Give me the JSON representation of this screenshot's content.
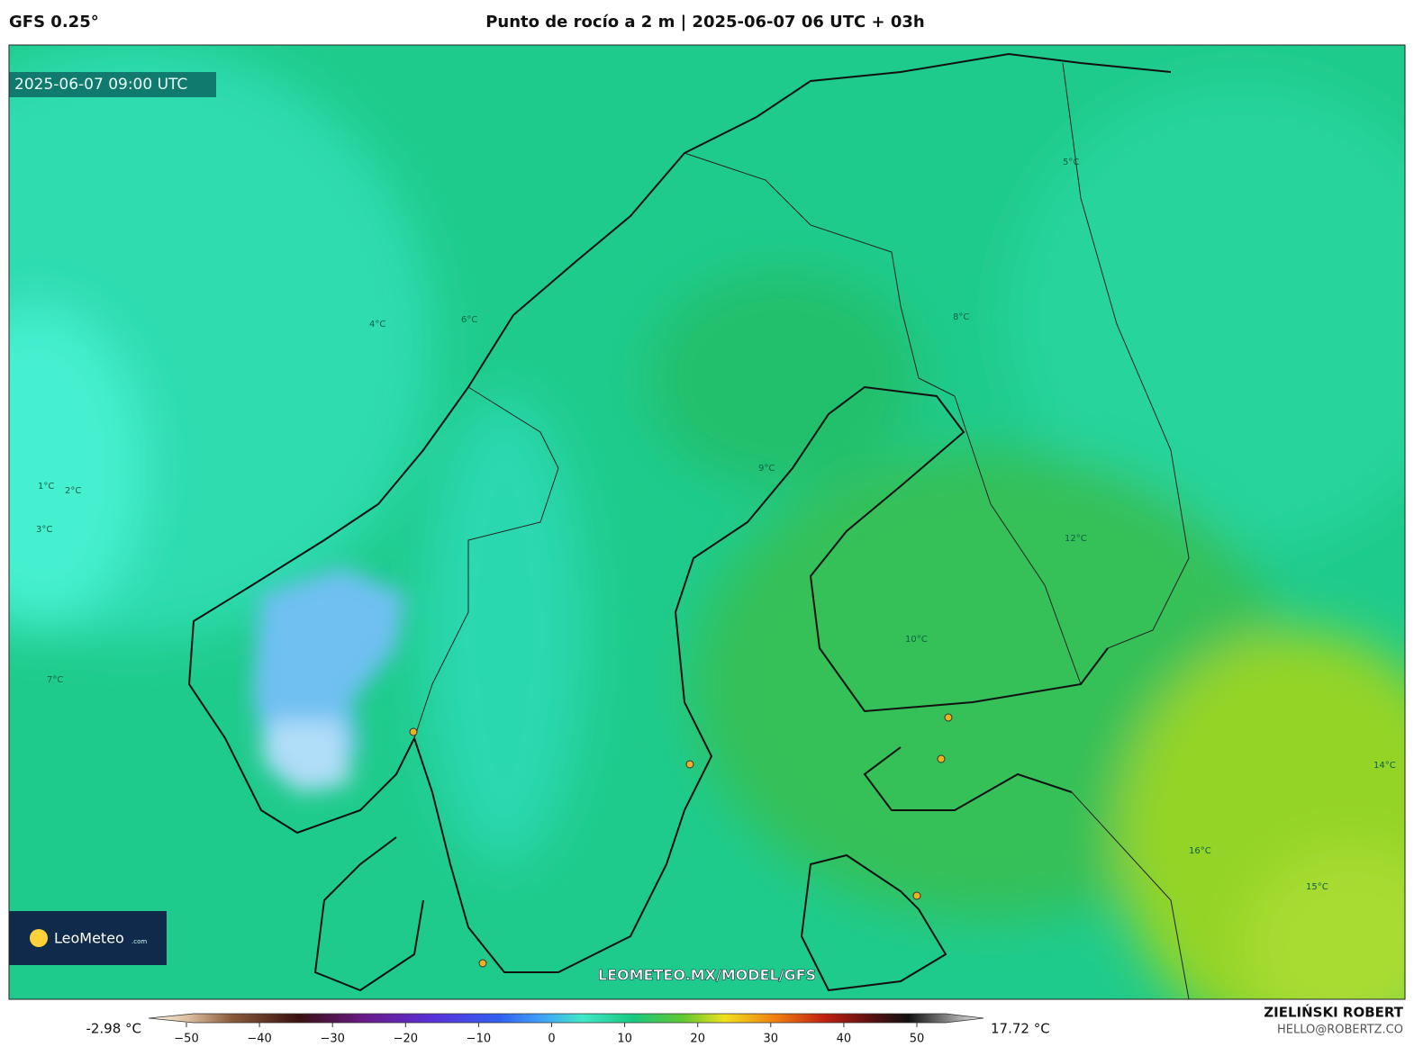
{
  "header": {
    "model": "GFS 0.25°",
    "title": "Punto de rocío a 2 m | 2025-06-07 06 UTC + 03h"
  },
  "map": {
    "timestamp": "2025-06-07 09:00 UTC",
    "watermark": "LEOMETEO.MX/MODEL/GFS",
    "logo": "LeoMeteo",
    "logo_suffix": ".com",
    "contour_labels": [
      "4°C",
      "6°C",
      "2°C",
      "1°C",
      "3°C",
      "8°C",
      "9°C",
      "10°C",
      "12°C",
      "14°C",
      "16°C",
      "15°C",
      "5°C",
      "7°C"
    ]
  },
  "colorbar": {
    "min_label": "-2.98 °C",
    "max_label": "17.72 °C",
    "ticks": [
      {
        "value": -50,
        "label": "−50"
      },
      {
        "value": -40,
        "label": "−40"
      },
      {
        "value": -30,
        "label": "−30"
      },
      {
        "value": -20,
        "label": "−20"
      },
      {
        "value": -10,
        "label": "−10"
      },
      0,
      10,
      20,
      30,
      40,
      50
    ]
  },
  "credits": {
    "author": "ZIELIŃSKI ROBERT",
    "email": "HELLO@ROBERTZ.CO"
  }
}
